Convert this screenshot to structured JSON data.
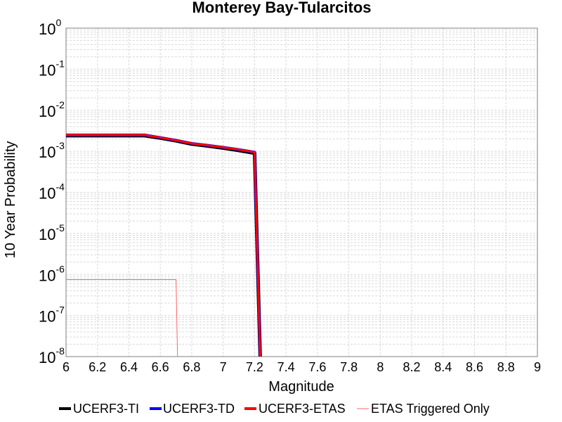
{
  "chart_data": {
    "type": "line",
    "title": "Monterey Bay-Tularcitos",
    "xlabel": "Magnitude",
    "ylabel": "10 Year Probability",
    "xlim": [
      6,
      9
    ],
    "ylim": [
      1e-08,
      1
    ],
    "yscale": "log",
    "grid": true,
    "legend_position": "bottom",
    "x_ticks": [
      "6",
      "6.2",
      "6.4",
      "6.6",
      "6.8",
      "7",
      "7.2",
      "7.4",
      "7.6",
      "7.8",
      "8",
      "8.2",
      "8.4",
      "8.6",
      "8.8",
      "9"
    ],
    "y_tick_exponents": [
      "-8",
      "-7",
      "-6",
      "-5",
      "-4",
      "-3",
      "-2",
      "-1",
      "0"
    ],
    "y_tick_base": "10",
    "series": [
      {
        "name": "UCERF3-TI",
        "color": "#000000",
        "x": [
          6.0,
          6.5,
          6.6,
          6.7,
          6.8,
          6.9,
          7.0,
          7.1,
          7.2,
          7.25
        ],
        "y": [
          0.0024,
          0.0024,
          0.0021,
          0.0018,
          0.0015,
          0.00135,
          0.0012,
          0.00105,
          0.0009,
          1e-10
        ]
      },
      {
        "name": "UCERF3-TD",
        "color": "#0000ff",
        "x": [
          6.0,
          6.5,
          6.6,
          6.7,
          6.8,
          6.9,
          7.0,
          7.1,
          7.2,
          7.25
        ],
        "y": [
          0.0025,
          0.0025,
          0.00215,
          0.00185,
          0.00155,
          0.0014,
          0.00125,
          0.0011,
          0.00095,
          1e-10
        ]
      },
      {
        "name": "UCERF3-ETAS",
        "color": "#ff0000",
        "x": [
          6.0,
          6.5,
          6.6,
          6.7,
          6.8,
          6.9,
          7.0,
          7.1,
          7.2,
          7.25
        ],
        "y": [
          0.0025,
          0.0025,
          0.00215,
          0.00185,
          0.00155,
          0.0014,
          0.00125,
          0.0011,
          0.00095,
          1e-10
        ]
      },
      {
        "name": "ETAS Triggered Only",
        "color": "#ff6666",
        "x": [
          6.0,
          6.7,
          6.72
        ],
        "y": [
          7.5e-07,
          7.5e-07,
          1e-10
        ]
      }
    ]
  }
}
